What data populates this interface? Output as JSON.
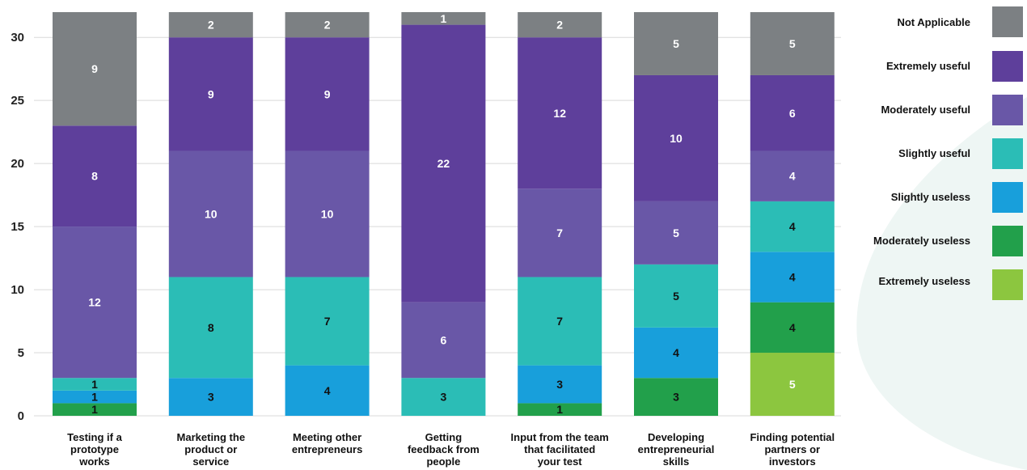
{
  "chart_data": {
    "type": "bar",
    "stacked": true,
    "ylim": [
      0,
      32
    ],
    "yticks": [
      0,
      5,
      10,
      15,
      20,
      25,
      30
    ],
    "grid": true,
    "legend_position": "right",
    "categories": [
      [
        "Testing if a",
        "prototype",
        "works"
      ],
      [
        "Marketing the",
        "product or",
        "service"
      ],
      [
        "Meeting other",
        "entrepreneurs"
      ],
      [
        "Getting",
        "feedback from",
        "people"
      ],
      [
        "Input from the team",
        "that facilitated",
        "your test"
      ],
      [
        "Developing",
        "entrepreneurial",
        "skills"
      ],
      [
        "Finding potential",
        "partners or",
        "investors"
      ]
    ],
    "series": [
      {
        "name": "Extremely useless",
        "color": "#8CC63F",
        "values": [
          0,
          0,
          0,
          0,
          0,
          0,
          5
        ]
      },
      {
        "name": "Moderately useless",
        "color": "#22A04B",
        "values": [
          1,
          0,
          0,
          0,
          1,
          3,
          4
        ]
      },
      {
        "name": "Slightly useless",
        "color": "#189FDB",
        "values": [
          1,
          3,
          4,
          0,
          3,
          4,
          4
        ]
      },
      {
        "name": "Slightly useful",
        "color": "#2BBDB6",
        "values": [
          1,
          8,
          7,
          3,
          7,
          5,
          4
        ]
      },
      {
        "name": "Moderately useful",
        "color": "#6957A7",
        "values": [
          12,
          10,
          10,
          6,
          7,
          5,
          4
        ]
      },
      {
        "name": "Extremely useful",
        "color": "#5E3F9B",
        "values": [
          8,
          9,
          9,
          22,
          12,
          10,
          6
        ]
      },
      {
        "name": "Not Applicable",
        "color": "#7C8083",
        "values": [
          9,
          2,
          2,
          1,
          2,
          5,
          5
        ]
      }
    ],
    "legend_order": [
      "Not Applicable",
      "Extremely useful",
      "Moderately useful",
      "Slightly useful",
      "Slightly useless",
      "Moderately useless",
      "Extremely useless"
    ]
  }
}
